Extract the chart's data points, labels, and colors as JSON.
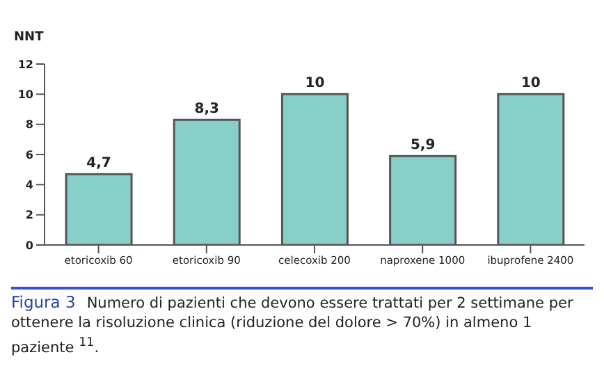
{
  "chart_data": {
    "type": "bar",
    "ylabel": "NNT",
    "categories": [
      "etoricoxib 60",
      "etoricoxib 90",
      "celecoxib 200",
      "naproxene 1000",
      "ibuprofene 2400"
    ],
    "values": [
      4.7,
      8.3,
      10,
      5.9,
      10
    ],
    "value_labels": [
      "4,7",
      "8,3",
      "10",
      "5,9",
      "10"
    ],
    "color": "#88cfca",
    "ylim": [
      0,
      12
    ],
    "yticks": [
      0,
      2,
      4,
      6,
      8,
      10,
      12
    ],
    "grid": false,
    "annotations": [
      "Figura 3",
      "Numero di pazienti che devono essere trattati per 2 settimane per ottenere la risoluzione clinica (riduzione del dolore > 70%) in almeno 1 paziente $^{11}$."
    ]
  }
}
